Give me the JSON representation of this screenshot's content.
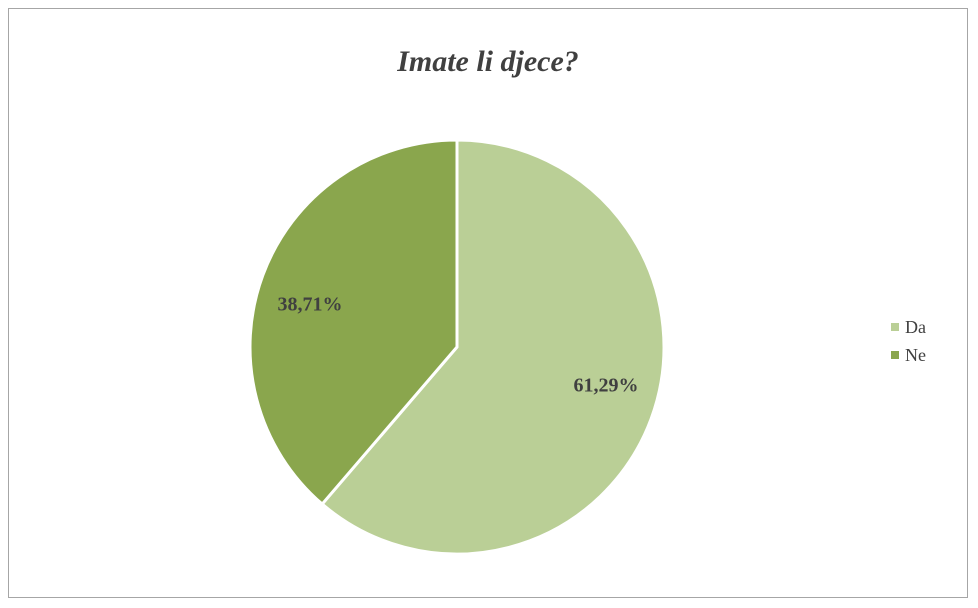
{
  "chart_data": {
    "type": "pie",
    "title": "Imate li djece?",
    "categories": [
      "Da",
      "Ne"
    ],
    "values": [
      61.29,
      38.71
    ],
    "data_labels": [
      "61,29%",
      "38,71%"
    ],
    "colors": [
      "#bacf96",
      "#8aa64d"
    ],
    "legend_position": "right"
  }
}
